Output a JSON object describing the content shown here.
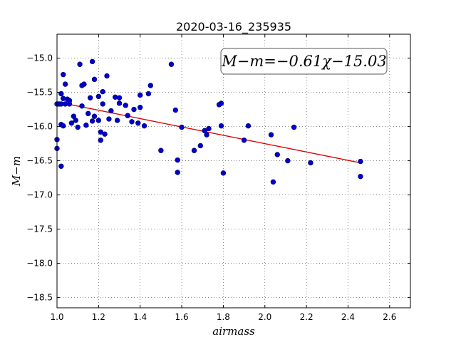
{
  "chart_data": {
    "type": "scatter",
    "title": "2020-03-16_235935",
    "xlabel": "airmass",
    "ylabel": "M−m",
    "xlim": [
      1.0,
      2.7
    ],
    "ylim": [
      -18.65,
      -14.65
    ],
    "y_inverted": true,
    "grid": true,
    "xticks": [
      1.0,
      1.2,
      1.4,
      1.6,
      1.8,
      2.0,
      2.2,
      2.4,
      2.6
    ],
    "xtick_labels": [
      "1.0",
      "1.2",
      "1.4",
      "1.6",
      "1.8",
      "2.0",
      "2.2",
      "2.4",
      "2.6"
    ],
    "yticks": [
      -15.0,
      -15.5,
      -16.0,
      -16.5,
      -17.0,
      -17.5,
      -18.0,
      -18.5
    ],
    "ytick_labels": [
      "−15.0",
      "−15.5",
      "−16.0",
      "−16.5",
      "−17.0",
      "−17.5",
      "−18.0",
      "−18.5"
    ],
    "annotation": "M−m=−0.61χ−15.03",
    "marker_color": "#0000cc",
    "fit_color": "#dd0000",
    "fit": {
      "slope": -0.61,
      "intercept": -15.03,
      "x_range": [
        1.0,
        2.46
      ]
    },
    "points": [
      [
        1.0,
        -15.67
      ],
      [
        1.0,
        -16.19
      ],
      [
        1.0,
        -16.32
      ],
      [
        1.01,
        -15.67
      ],
      [
        1.02,
        -16.58
      ],
      [
        1.02,
        -15.67
      ],
      [
        1.02,
        -15.97
      ],
      [
        1.02,
        -15.52
      ],
      [
        1.03,
        -15.99
      ],
      [
        1.03,
        -15.24
      ],
      [
        1.03,
        -15.59
      ],
      [
        1.04,
        -15.38
      ],
      [
        1.04,
        -15.67
      ],
      [
        1.05,
        -15.6
      ],
      [
        1.06,
        -15.62
      ],
      [
        1.06,
        -15.67
      ],
      [
        1.07,
        -15.95
      ],
      [
        1.08,
        -15.85
      ],
      [
        1.09,
        -15.91
      ],
      [
        1.1,
        -16.01
      ],
      [
        1.11,
        -15.09
      ],
      [
        1.12,
        -15.4
      ],
      [
        1.12,
        -15.7
      ],
      [
        1.13,
        -15.38
      ],
      [
        1.14,
        -15.98
      ],
      [
        1.15,
        -15.81
      ],
      [
        1.16,
        -15.58
      ],
      [
        1.17,
        -15.92
      ],
      [
        1.17,
        -15.05
      ],
      [
        1.18,
        -15.31
      ],
      [
        1.18,
        -15.85
      ],
      [
        1.2,
        -15.56
      ],
      [
        1.2,
        -15.91
      ],
      [
        1.21,
        -16.08
      ],
      [
        1.21,
        -16.2
      ],
      [
        1.22,
        -15.49
      ],
      [
        1.22,
        -15.67
      ],
      [
        1.23,
        -16.11
      ],
      [
        1.24,
        -15.26
      ],
      [
        1.25,
        -15.89
      ],
      [
        1.26,
        -15.77
      ],
      [
        1.28,
        -15.57
      ],
      [
        1.29,
        -15.91
      ],
      [
        1.3,
        -15.58
      ],
      [
        1.3,
        -15.66
      ],
      [
        1.33,
        -15.69
      ],
      [
        1.34,
        -15.84
      ],
      [
        1.36,
        -15.93
      ],
      [
        1.37,
        -15.75
      ],
      [
        1.39,
        -15.95
      ],
      [
        1.4,
        -15.54
      ],
      [
        1.4,
        -15.72
      ],
      [
        1.42,
        -15.99
      ],
      [
        1.44,
        -15.52
      ],
      [
        1.45,
        -15.4
      ],
      [
        1.5,
        -16.35
      ],
      [
        1.55,
        -15.09
      ],
      [
        1.57,
        -15.76
      ],
      [
        1.58,
        -16.49
      ],
      [
        1.58,
        -16.67
      ],
      [
        1.6,
        -16.01
      ],
      [
        1.66,
        -16.35
      ],
      [
        1.69,
        -16.28
      ],
      [
        1.71,
        -16.06
      ],
      [
        1.72,
        -16.12
      ],
      [
        1.73,
        -16.03
      ],
      [
        1.78,
        -15.68
      ],
      [
        1.79,
        -15.99
      ],
      [
        1.79,
        -15.66
      ],
      [
        1.8,
        -16.68
      ],
      [
        1.9,
        -16.2
      ],
      [
        1.92,
        -15.99
      ],
      [
        2.03,
        -16.12
      ],
      [
        2.04,
        -16.81
      ],
      [
        2.06,
        -16.41
      ],
      [
        2.11,
        -16.5
      ],
      [
        2.14,
        -16.01
      ],
      [
        2.22,
        -16.53
      ],
      [
        2.46,
        -16.51
      ],
      [
        2.46,
        -16.73
      ]
    ]
  }
}
